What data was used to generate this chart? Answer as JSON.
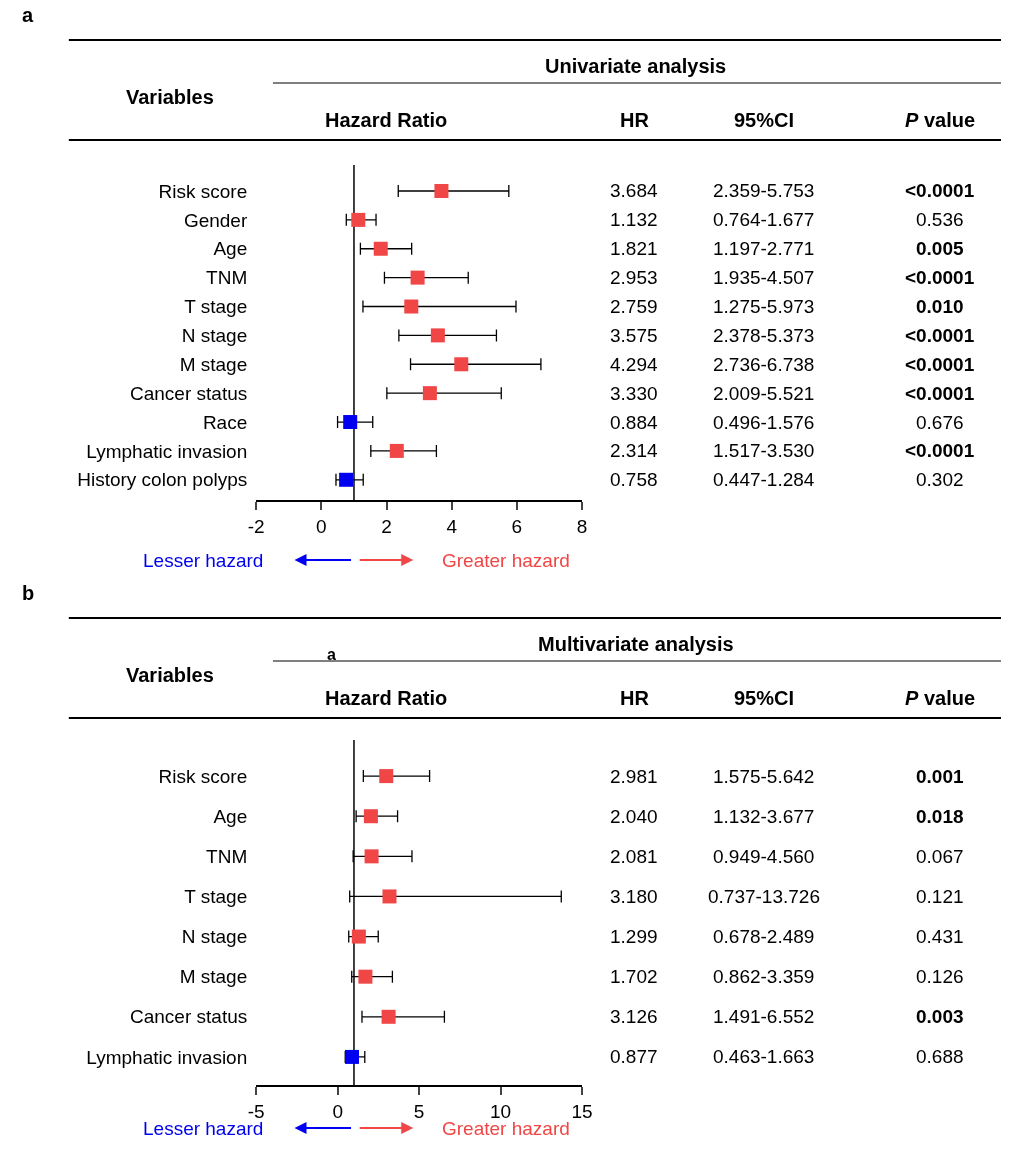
{
  "chart_data": [
    {
      "type": "scatter",
      "orientation": "horizontal",
      "title": "Univariate analysis",
      "ylabel": "Variables",
      "xlabel": "Hazard Ratio",
      "categories": [
        "Risk score",
        "Gender",
        "Age",
        "TNM",
        "T stage",
        "N stage",
        "M stage",
        "Cancer status",
        "Race",
        "Lymphatic invasion",
        "History colon polyps"
      ],
      "values": [
        3.684,
        1.132,
        1.821,
        2.953,
        2.759,
        3.575,
        4.294,
        3.33,
        0.884,
        2.314,
        0.758
      ],
      "value_labels": [
        "3.684",
        "1.132",
        "1.821",
        "2.953",
        "2.759",
        "3.575",
        "4.294",
        "3.330",
        "0.884",
        "2.314",
        "0.758"
      ],
      "errors": [
        [
          2.359,
          5.753
        ],
        [
          0.764,
          1.677
        ],
        [
          1.197,
          2.771
        ],
        [
          1.935,
          4.507
        ],
        [
          1.275,
          5.973
        ],
        [
          2.378,
          5.373
        ],
        [
          2.736,
          6.738
        ],
        [
          2.009,
          5.521
        ],
        [
          0.496,
          1.576
        ],
        [
          1.517,
          3.53
        ],
        [
          0.447,
          1.284
        ]
      ],
      "colors": [
        "#f04646",
        "#f04646",
        "#f04646",
        "#f04646",
        "#f04646",
        "#f04646",
        "#f04646",
        "#f04646",
        "#0000f0",
        "#f04646",
        "#0000f0"
      ],
      "marker": "square",
      "xlim": [
        -2,
        8
      ],
      "xticks": [
        -2,
        0,
        2,
        4,
        6,
        8
      ],
      "grid": false,
      "ref_lines": [
        {
          "axis": "x",
          "value": 1,
          "color": "#000000"
        }
      ],
      "annotations": [
        "a",
        "HR",
        "95%CI",
        "P value",
        "Lesser hazard",
        "Greater hazard",
        "2.359-5.753",
        "0.764-1.677",
        "1.197-2.771",
        "1.935-4.507",
        "1.275-5.973",
        "2.378-5.373",
        "2.736-6.738",
        "2.009-5.521",
        "0.496-1.576",
        "1.517-3.530",
        "0.447-1.284",
        "<0.0001",
        "0.536",
        "0.005",
        "<0.0001",
        "0.010",
        "<0.0001",
        "<0.0001",
        "<0.0001",
        "0.676",
        "<0.0001",
        "0.302"
      ]
    },
    {
      "type": "scatter",
      "orientation": "horizontal",
      "title": "Multivariate analysis",
      "ylabel": "Variables",
      "xlabel": "Hazard Ratio",
      "categories": [
        "Risk score",
        "Age",
        "TNM",
        "T stage",
        "N stage",
        "M stage",
        "Cancer status",
        "Lymphatic invasion"
      ],
      "values": [
        2.981,
        2.04,
        2.081,
        3.18,
        1.299,
        1.702,
        3.126,
        0.877
      ],
      "value_labels": [
        "2.981",
        "2.040",
        "2.081",
        "3.180",
        "1.299",
        "1.702",
        "3.126",
        "0.877"
      ],
      "errors": [
        [
          1.575,
          5.642
        ],
        [
          1.132,
          3.677
        ],
        [
          0.949,
          4.56
        ],
        [
          0.737,
          13.726
        ],
        [
          0.678,
          2.489
        ],
        [
          0.862,
          3.359
        ],
        [
          1.491,
          6.552
        ],
        [
          0.463,
          1.663
        ]
      ],
      "colors": [
        "#f04646",
        "#f04646",
        "#f04646",
        "#f04646",
        "#f04646",
        "#f04646",
        "#f04646",
        "#0000f0"
      ],
      "marker": "square",
      "xlim": [
        -5,
        15
      ],
      "xticks": [
        -5,
        0,
        5,
        10,
        15
      ],
      "grid": false,
      "ref_lines": [
        {
          "axis": "x",
          "value": 1,
          "color": "#000000"
        }
      ],
      "annotations": [
        "b",
        "HR",
        "95%CI",
        "P value",
        "Lesser hazard",
        "Greater hazard",
        "1.575-5.642",
        "1.132-3.677",
        "0.949-4.560",
        "0.737-13.726",
        "0.678-2.489",
        "0.862-3.359",
        "1.491-6.552",
        "0.463-1.663",
        "0.001",
        "0.018",
        "0.067",
        "0.121",
        "0.431",
        "0.126",
        "0.003",
        "0.688",
        "a"
      ]
    }
  ]
}
